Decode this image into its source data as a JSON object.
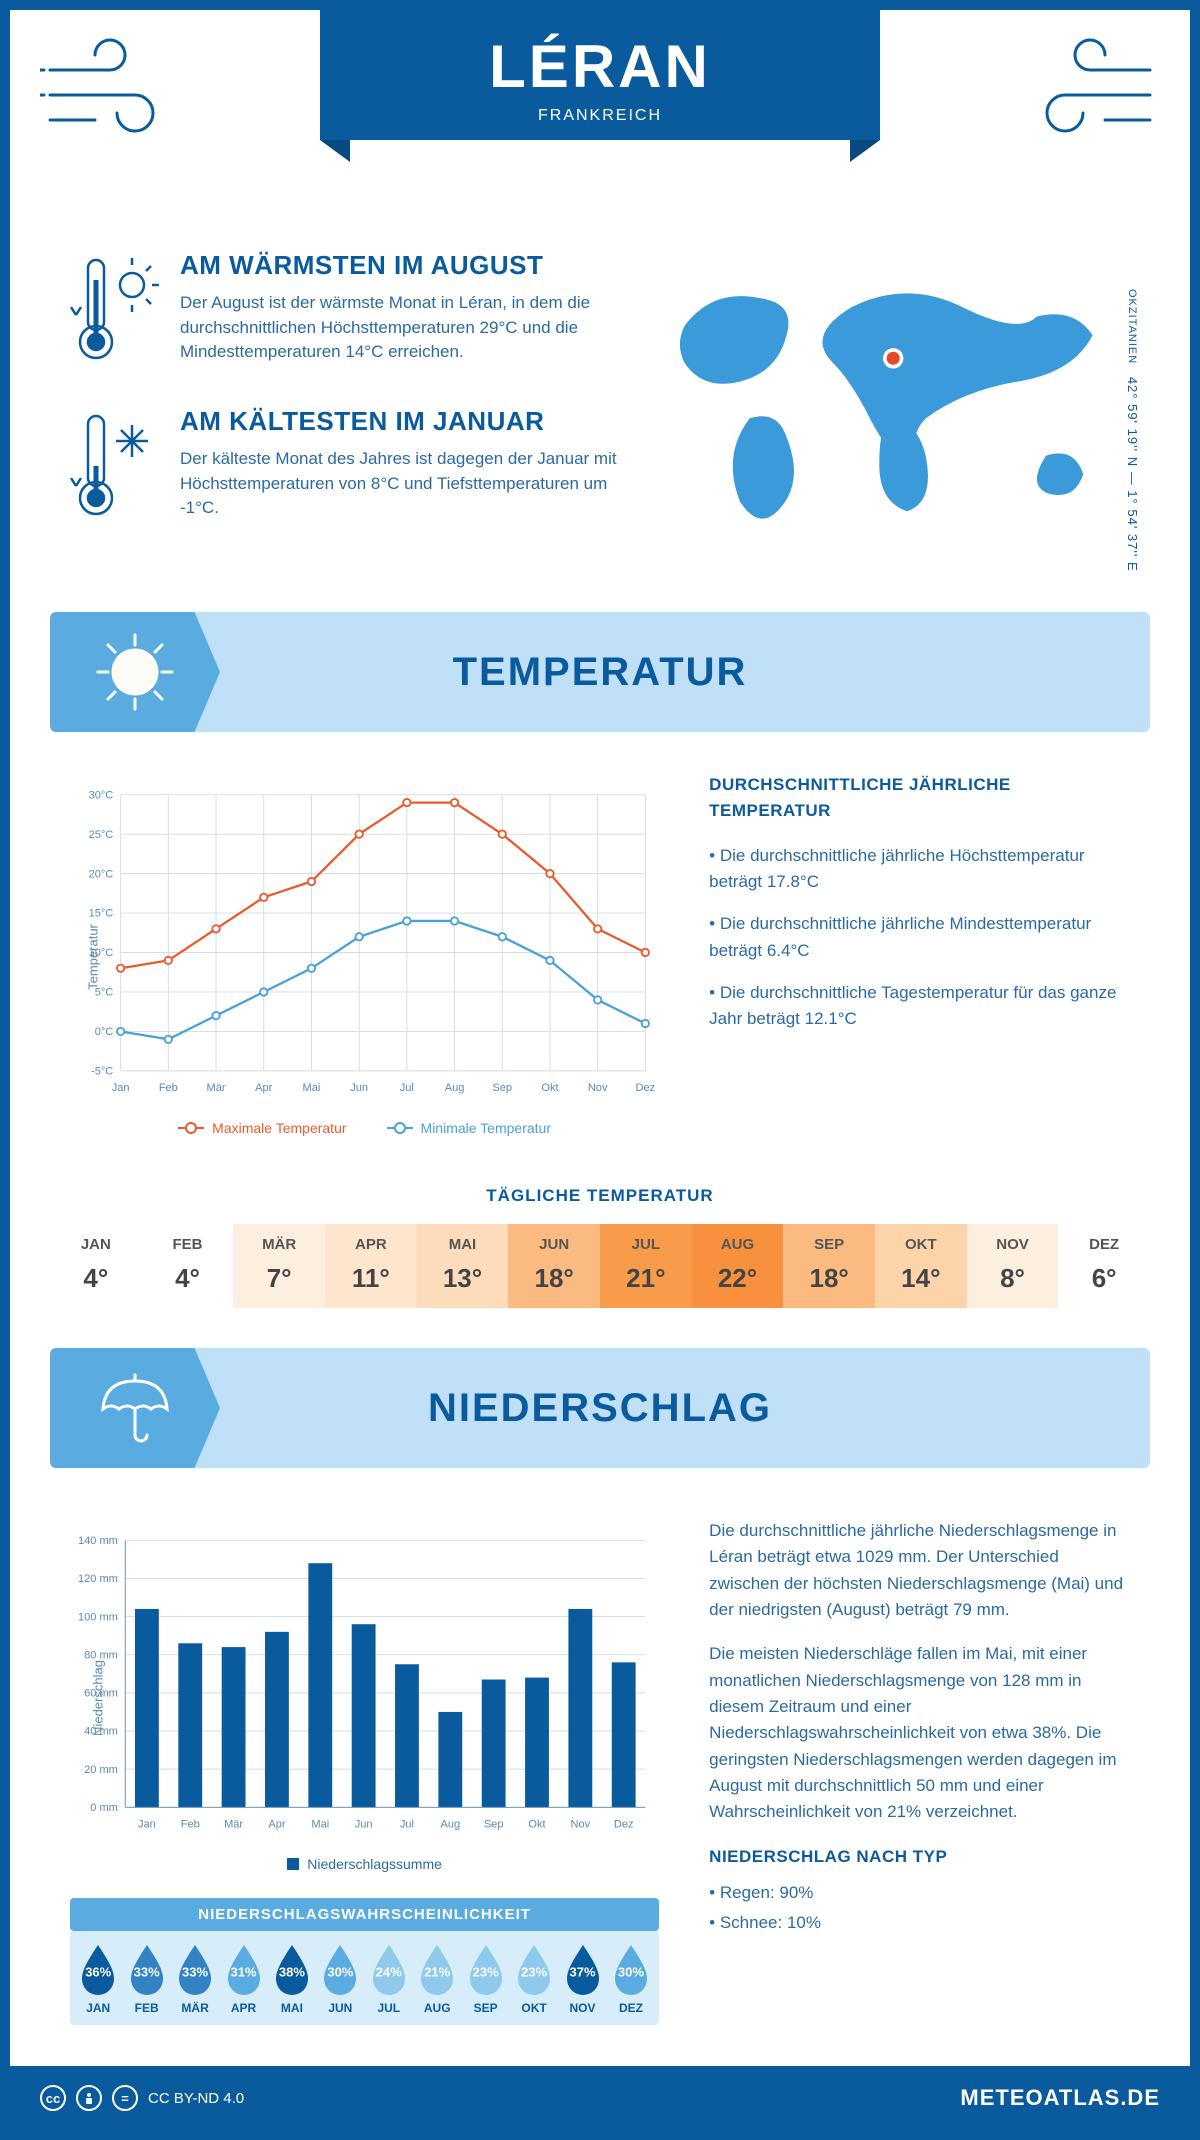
{
  "header": {
    "city": "LÉRAN",
    "country": "FRANKREICH"
  },
  "coords": {
    "region": "OKZITANIEN",
    "lat": "42° 59' 19'' N",
    "lon": "1° 54' 37'' E"
  },
  "facts": {
    "warm": {
      "title": "AM WÄRMSTEN IM AUGUST",
      "text": "Der August ist der wärmste Monat in Léran, in dem die durchschnittlichen Höchsttemperaturen 29°C und die Mindesttemperaturen 14°C erreichen."
    },
    "cold": {
      "title": "AM KÄLTESTEN IM JANUAR",
      "text": "Der kälteste Monat des Jahres ist dagegen der Januar mit Höchsttemperaturen von 8°C und Tiefsttemperaturen um -1°C."
    }
  },
  "sections": {
    "temp": "TEMPERATUR",
    "precip": "NIEDERSCHLAG"
  },
  "months": [
    "Jan",
    "Feb",
    "Mär",
    "Apr",
    "Mai",
    "Jun",
    "Jul",
    "Aug",
    "Sep",
    "Okt",
    "Nov",
    "Dez"
  ],
  "months_upper": [
    "JAN",
    "FEB",
    "MÄR",
    "APR",
    "MAI",
    "JUN",
    "JUL",
    "AUG",
    "SEP",
    "OKT",
    "NOV",
    "DEZ"
  ],
  "temp_chart": {
    "type": "line",
    "y_label": "Temperatur",
    "ylim": [
      -5,
      30
    ],
    "ytick_step": 5,
    "max_series": [
      8,
      9,
      13,
      17,
      19,
      25,
      29,
      29,
      25,
      20,
      13,
      10
    ],
    "min_series": [
      0,
      -1,
      2,
      5,
      8,
      12,
      14,
      14,
      12,
      9,
      4,
      1
    ],
    "max_color": "#e85c2b",
    "min_color": "#4aa0d8",
    "grid_color": "#d0dce6",
    "background": "#ffffff",
    "legend": {
      "max": "Maximale Temperatur",
      "min": "Minimale Temperatur"
    }
  },
  "temp_side": {
    "title": "DURCHSCHNITTLICHE JÄHRLICHE TEMPERATUR",
    "l1": "• Die durchschnittliche jährliche Höchsttemperatur beträgt 17.8°C",
    "l2": "• Die durchschnittliche jährliche Mindesttemperatur beträgt 6.4°C",
    "l3": "• Die durchschnittliche Tagestemperatur für das ganze Jahr beträgt 12.1°C"
  },
  "daily": {
    "title": "TÄGLICHE TEMPERATUR",
    "values": [
      "4°",
      "4°",
      "7°",
      "11°",
      "13°",
      "18°",
      "21°",
      "22°",
      "18°",
      "14°",
      "8°",
      "6°"
    ],
    "colors": [
      "#ffffff",
      "#ffffff",
      "#fdefdf",
      "#fde5ce",
      "#fddcbb",
      "#fbbb80",
      "#f89b4a",
      "#f7913d",
      "#fbbb80",
      "#fdd3a9",
      "#fdefdf",
      "#ffffff"
    ]
  },
  "precip_chart": {
    "type": "bar",
    "y_label": "Niederschlag",
    "ylim": [
      0,
      140
    ],
    "ytick_step": 20,
    "unit": "mm",
    "values": [
      104,
      86,
      84,
      92,
      128,
      96,
      75,
      50,
      67,
      68,
      104,
      76
    ],
    "bar_color": "#0a5a9e",
    "grid_color": "#d0dce6",
    "legend": "Niederschlagssumme"
  },
  "precip_side": {
    "p1": "Die durchschnittliche jährliche Niederschlagsmenge in Léran beträgt etwa 1029 mm. Der Unterschied zwischen der höchsten Niederschlagsmenge (Mai) und der niedrigsten (August) beträgt 79 mm.",
    "p2": "Die meisten Niederschläge fallen im Mai, mit einer monatlichen Niederschlagsmenge von 128 mm in diesem Zeitraum und einer Niederschlagswahrscheinlichkeit von etwa 38%. Die geringsten Niederschlagsmengen werden dagegen im August mit durchschnittlich 50 mm und einer Wahrscheinlichkeit von 21% verzeichnet.",
    "type_title": "NIEDERSCHLAG NACH TYP",
    "type_l1": "• Regen: 90%",
    "type_l2": "• Schnee: 10%"
  },
  "prob": {
    "title": "NIEDERSCHLAGSWAHRSCHEINLICHKEIT",
    "values": [
      "36%",
      "33%",
      "33%",
      "31%",
      "38%",
      "30%",
      "24%",
      "21%",
      "23%",
      "23%",
      "37%",
      "30%"
    ],
    "colors": [
      "#0a5a9e",
      "#3282c4",
      "#3282c4",
      "#5aace0",
      "#0a5a9e",
      "#5aace0",
      "#8fc9eb",
      "#8fc9eb",
      "#8fc9eb",
      "#8fc9eb",
      "#0a5a9e",
      "#5aace0"
    ]
  },
  "footer": {
    "license": "CC BY-ND 4.0",
    "brand": "METEOATLAS.DE"
  },
  "palette": {
    "primary": "#0a5a9e",
    "light": "#bfe0f7",
    "mid": "#5aace0"
  }
}
